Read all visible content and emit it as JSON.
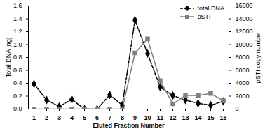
{
  "chart_data": {
    "type": "line",
    "x_label": "Eluted Fraction Number",
    "y_label": "Total DNA [ng]",
    "y2_label": "pSTI copy number",
    "categories": [
      1,
      2,
      3,
      4,
      5,
      6,
      7,
      8,
      9,
      10,
      11,
      12,
      13,
      14,
      15,
      16
    ],
    "series": [
      {
        "name": "total DNA",
        "color": "#000000",
        "line_style": "dashed",
        "marker": "diamond",
        "values": [
          0.39,
          0.14,
          0.04,
          0.15,
          0.0,
          0.0,
          0.22,
          0.06,
          1.38,
          0.86,
          0.34,
          0.21,
          0.14,
          0.09,
          0.06,
          0.12
        ]
      },
      {
        "name": "pSTI",
        "color": "#808080",
        "line_style": "solid",
        "marker": "square",
        "axis": "y2",
        "values": [
          0,
          0,
          0,
          0,
          0,
          0,
          0,
          0,
          8700,
          10900,
          4400,
          800,
          2100,
          2100,
          2400,
          1300
        ]
      }
    ],
    "ylim": [
      0,
      1.6
    ],
    "yticks": [
      {
        "value": 0,
        "label": "0.0"
      },
      0.2,
      0.4,
      0.6,
      0.8,
      {
        "value": 1,
        "label": "1.0"
      },
      1.2,
      1.4,
      1.6
    ],
    "y2lim": [
      0,
      16000
    ],
    "y2ticks": [
      0,
      2000,
      4000,
      6000,
      8000,
      10000,
      12000,
      14000,
      16000
    ],
    "legend": "top-right",
    "grid": false
  }
}
